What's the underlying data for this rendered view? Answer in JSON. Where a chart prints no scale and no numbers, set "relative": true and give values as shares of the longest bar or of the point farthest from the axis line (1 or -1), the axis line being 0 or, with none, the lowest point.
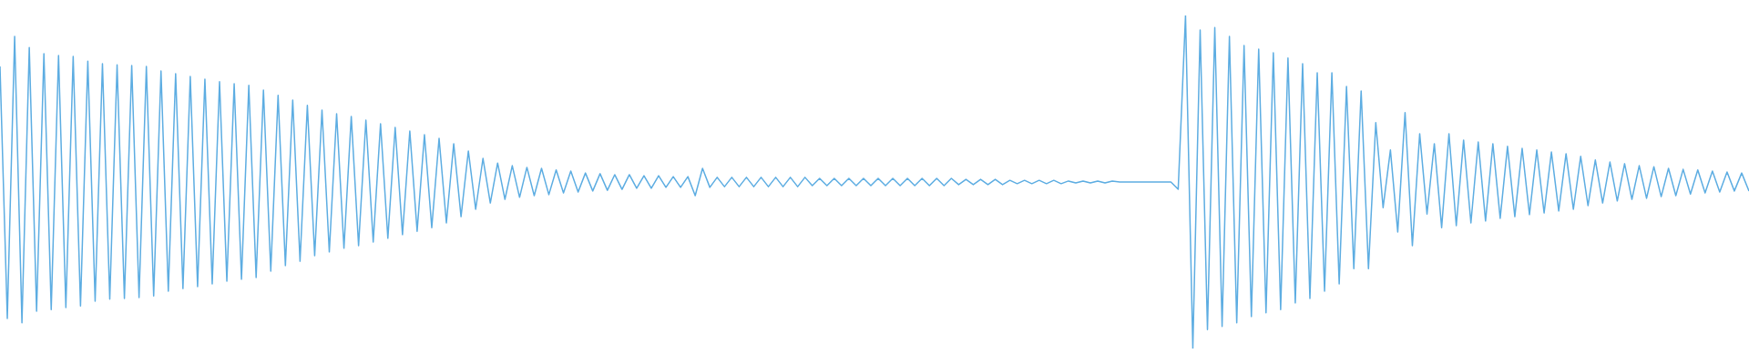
{
  "chart_data": {
    "type": "line",
    "relative": true,
    "color": "#5dade2",
    "categories": [
      null,
      null,
      null,
      null,
      null,
      null,
      null,
      null,
      null,
      null,
      null,
      null,
      null,
      null,
      null,
      null,
      null,
      null,
      null,
      null,
      null,
      null,
      null,
      null,
      null,
      null,
      null,
      null,
      null,
      null,
      null,
      null,
      null,
      null,
      null,
      null,
      null,
      null,
      null,
      null,
      null,
      null,
      null,
      null,
      null,
      null,
      null,
      null,
      null,
      null,
      null,
      null,
      null,
      null,
      null,
      null,
      null,
      null,
      null,
      null,
      null,
      null,
      null,
      null,
      null,
      null,
      null,
      null,
      null,
      null,
      null,
      null,
      null,
      null,
      null,
      null,
      null,
      null,
      null,
      null,
      null,
      null,
      null,
      null,
      null,
      null,
      null,
      null,
      null,
      null,
      null,
      null,
      null,
      null,
      null,
      null,
      null,
      null,
      null,
      null,
      null,
      null,
      null,
      null,
      null,
      null,
      null,
      null,
      null,
      null,
      null,
      null,
      null,
      null,
      null,
      null,
      null,
      null,
      null,
      null,
      null,
      null,
      null,
      null,
      null,
      null,
      null,
      null,
      null,
      null,
      null,
      null,
      null,
      null,
      null,
      null,
      null,
      null,
      null,
      null,
      null,
      null,
      null,
      null,
      null,
      null,
      null,
      null,
      null,
      null,
      null,
      null,
      null,
      null,
      null,
      null,
      null,
      null,
      null,
      null,
      null,
      null,
      null,
      null,
      null,
      null,
      null,
      null,
      null,
      null,
      null,
      null,
      null,
      null,
      null,
      null,
      null,
      null,
      null,
      null,
      null,
      null,
      null,
      null,
      null,
      null,
      null,
      null,
      null,
      null,
      null,
      null,
      null,
      null,
      null,
      null,
      null,
      null,
      null,
      null,
      null,
      null,
      null,
      null,
      null,
      null,
      null,
      null,
      null,
      null,
      null,
      null,
      null,
      null,
      null,
      null,
      null,
      null,
      null,
      null,
      null,
      null,
      null,
      null,
      null,
      null,
      null,
      null,
      null,
      null,
      null,
      null,
      null,
      null,
      null,
      null,
      null,
      null,
      null,
      null
    ],
    "values": [
      0.847,
      0.09,
      0.937,
      0.077,
      0.904,
      0.112,
      0.885,
      0.117,
      0.88,
      0.123,
      0.877,
      0.128,
      0.863,
      0.142,
      0.855,
      0.148,
      0.852,
      0.15,
      0.85,
      0.153,
      0.847,
      0.158,
      0.833,
      0.172,
      0.825,
      0.18,
      0.817,
      0.186,
      0.809,
      0.194,
      0.801,
      0.202,
      0.795,
      0.208,
      0.79,
      0.213,
      0.776,
      0.232,
      0.76,
      0.249,
      0.746,
      0.262,
      0.73,
      0.279,
      0.716,
      0.29,
      0.705,
      0.301,
      0.697,
      0.309,
      0.686,
      0.32,
      0.675,
      0.331,
      0.664,
      0.342,
      0.653,
      0.352,
      0.642,
      0.363,
      0.631,
      0.377,
      0.615,
      0.396,
      0.593,
      0.418,
      0.571,
      0.437,
      0.557,
      0.448,
      0.549,
      0.454,
      0.544,
      0.459,
      0.541,
      0.462,
      0.536,
      0.467,
      0.533,
      0.47,
      0.527,
      0.473,
      0.525,
      0.475,
      0.522,
      0.478,
      0.522,
      0.481,
      0.519,
      0.481,
      0.519,
      0.484,
      0.516,
      0.484,
      0.516,
      0.459,
      0.541,
      0.484,
      0.514,
      0.486,
      0.514,
      0.486,
      0.514,
      0.486,
      0.514,
      0.486,
      0.514,
      0.486,
      0.514,
      0.486,
      0.514,
      0.489,
      0.511,
      0.489,
      0.511,
      0.489,
      0.511,
      0.489,
      0.511,
      0.489,
      0.511,
      0.489,
      0.511,
      0.489,
      0.511,
      0.489,
      0.511,
      0.489,
      0.511,
      0.489,
      0.511,
      0.492,
      0.508,
      0.492,
      0.508,
      0.492,
      0.508,
      0.492,
      0.505,
      0.495,
      0.505,
      0.495,
      0.505,
      0.495,
      0.505,
      0.495,
      0.503,
      0.497,
      0.503,
      0.497,
      0.503,
      0.497,
      0.503,
      0.5,
      0.5,
      0.5,
      0.5,
      0.5,
      0.5,
      0.5,
      0.5,
      0.478,
      1,
      0,
      0.956,
      0.057,
      0.964,
      0.066,
      0.937,
      0.077,
      0.91,
      0.096,
      0.899,
      0.107,
      0.888,
      0.117,
      0.872,
      0.137,
      0.855,
      0.15,
      0.828,
      0.172,
      0.828,
      0.194,
      0.787,
      0.24,
      0.773,
      0.24,
      0.678,
      0.423,
      0.596,
      0.35,
      0.708,
      0.309,
      0.645,
      0.404,
      0.615,
      0.363,
      0.645,
      0.369,
      0.626,
      0.377,
      0.62,
      0.383,
      0.615,
      0.391,
      0.607,
      0.396,
      0.601,
      0.402,
      0.596,
      0.407,
      0.59,
      0.413,
      0.585,
      0.418,
      0.577,
      0.429,
      0.566,
      0.437,
      0.56,
      0.443,
      0.555,
      0.448,
      0.549,
      0.451,
      0.546,
      0.456,
      0.541,
      0.459,
      0.538,
      0.464,
      0.536,
      0.467,
      0.533,
      0.47,
      0.53,
      0.473,
      0.527,
      0.473
    ]
  }
}
